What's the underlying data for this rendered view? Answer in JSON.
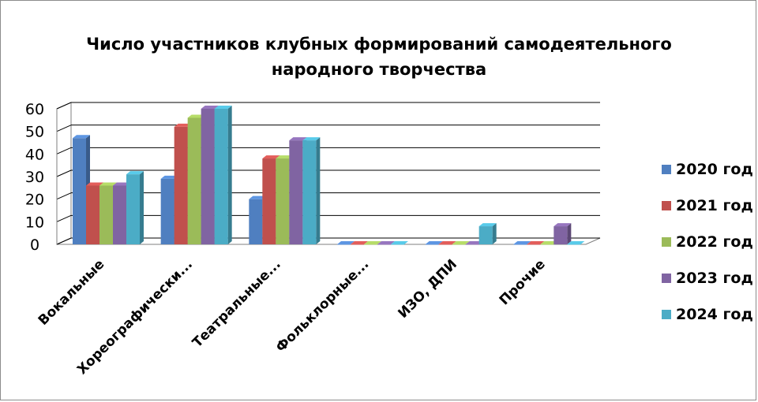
{
  "chart_data": {
    "type": "bar",
    "title_lines": [
      "Число участников клубных формирований самодеятельного",
      "народного творчества"
    ],
    "categories": [
      "Вокальные",
      "Хореографически...",
      "Театральные...",
      "Фольклорные...",
      "ИЗО, ДПИ",
      "Прочие"
    ],
    "series": [
      {
        "name": "2020 год",
        "color": "#4f7fc0",
        "values": [
          47,
          29,
          20,
          0,
          0,
          0
        ]
      },
      {
        "name": "2021 год",
        "color": "#c0504d",
        "values": [
          26,
          52,
          38,
          0,
          0,
          0
        ]
      },
      {
        "name": "2022 год",
        "color": "#9bbb59",
        "values": [
          26,
          56,
          38,
          0,
          0,
          0
        ]
      },
      {
        "name": "2023 год",
        "color": "#8064a2",
        "values": [
          26,
          60,
          46,
          0,
          0,
          8
        ]
      },
      {
        "name": "2024 год",
        "color": "#4bacc6",
        "values": [
          31,
          60,
          46,
          0,
          8,
          0
        ]
      }
    ],
    "yticks": [
      0,
      10,
      20,
      30,
      40,
      50,
      60
    ],
    "ylim": [
      0,
      60
    ],
    "grid": true,
    "legend_position": "right",
    "xlabel": "",
    "ylabel": ""
  }
}
